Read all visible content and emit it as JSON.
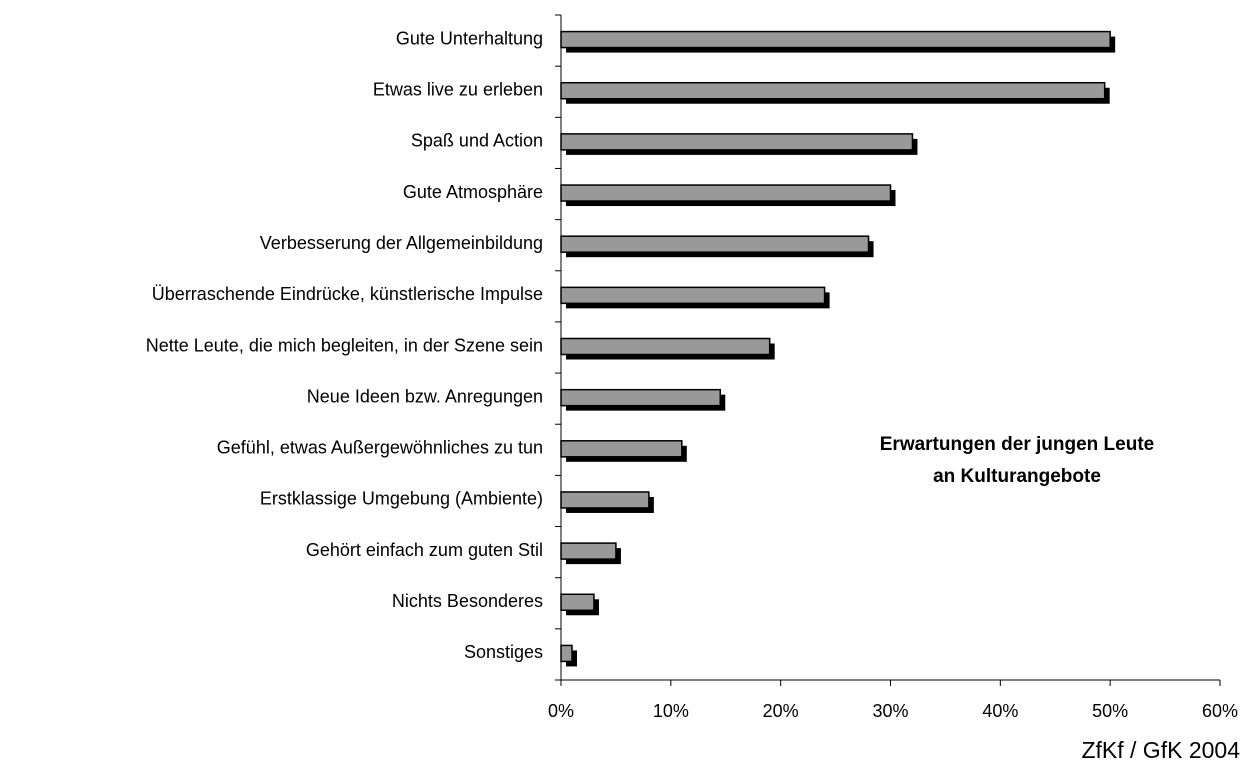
{
  "chart_data": {
    "type": "bar",
    "orientation": "horizontal",
    "title": [
      "Erwartungen der jungen Leute",
      "an Kulturangebote"
    ],
    "source": "ZfKf / GfK 2004",
    "categories": [
      "Gute Unterhaltung",
      "Etwas live zu erleben",
      "Spaß und Action",
      "Gute Atmosphäre",
      "Verbesserung der Allgemeinbildung",
      "Überraschende Eindrücke, künstlerische Impulse",
      "Nette Leute, die mich begleiten, in der Szene sein",
      "Neue Ideen bzw. Anregungen",
      "Gefühl, etwas Außergewöhnliches zu tun",
      "Erstklassige Umgebung (Ambiente)",
      "Gehört einfach zum guten Stil",
      "Nichts Besonderes",
      "Sonstiges"
    ],
    "values": [
      50,
      49.5,
      32,
      30,
      28,
      24,
      19,
      14.5,
      11,
      8,
      5,
      3,
      1
    ],
    "color": "#999999",
    "shadow_color": "#000000",
    "xlim": [
      0,
      60
    ],
    "xticks": [
      {
        "value": 0,
        "label": "0%"
      },
      {
        "value": 10,
        "label": "10%"
      },
      {
        "value": 20,
        "label": "20%"
      },
      {
        "value": 30,
        "label": "30%"
      },
      {
        "value": 40,
        "label": "40%"
      },
      {
        "value": 50,
        "label": "50%"
      },
      {
        "value": 60,
        "label": "60%"
      }
    ],
    "grid": false
  }
}
